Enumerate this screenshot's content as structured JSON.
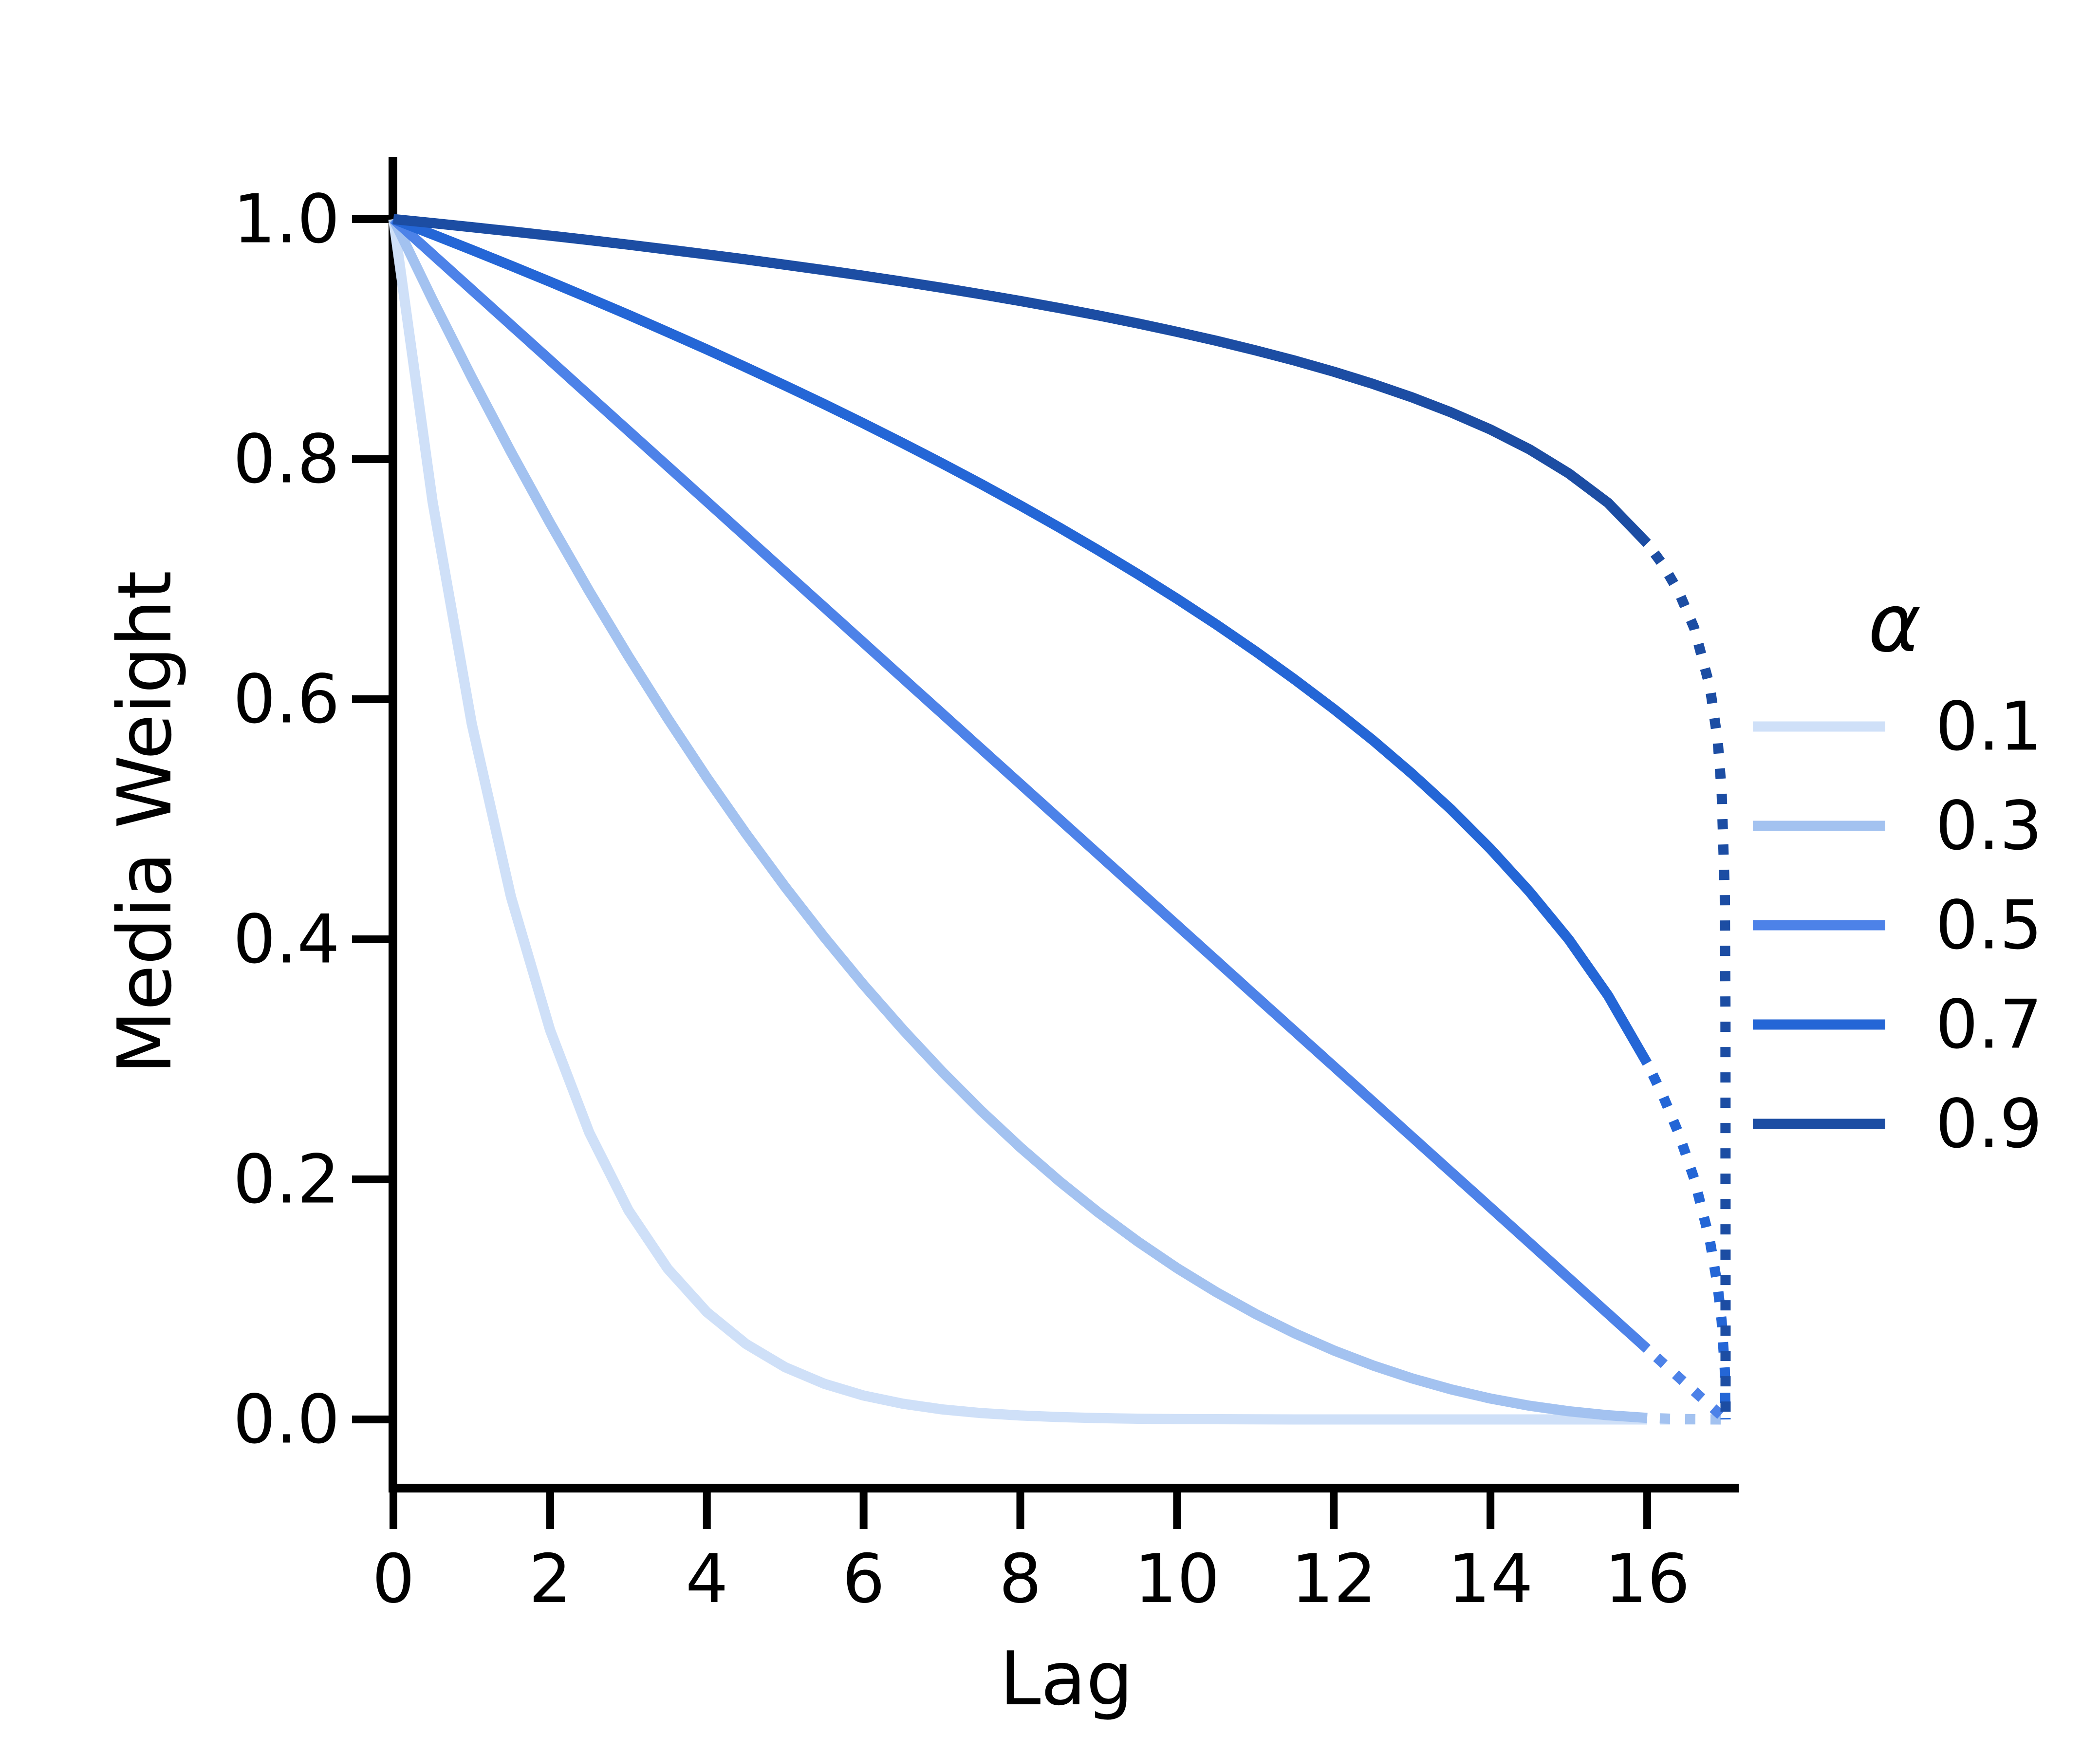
{
  "chart_data": {
    "type": "line",
    "title": "",
    "xlabel": "Lag",
    "ylabel": "Media Weight",
    "xlim": [
      0,
      17.2
    ],
    "ylim": [
      -0.06,
      1.05
    ],
    "grid": false,
    "background": "#ffffff",
    "axis_color": "#000000",
    "x_tick_values": [
      0,
      2,
      4,
      6,
      8,
      10,
      12,
      14,
      16
    ],
    "x_tick_labels": [
      "0",
      "2",
      "4",
      "6",
      "8",
      "10",
      "12",
      "14",
      "16"
    ],
    "y_tick_values": [
      0.0,
      0.2,
      0.4,
      0.6,
      0.8,
      1.0
    ],
    "y_tick_labels": [
      "0.0",
      "0.2",
      "0.4",
      "0.6",
      "0.8",
      "1.0"
    ],
    "legend": {
      "title": "α",
      "position": "right",
      "entries": [
        {
          "label": "0.1",
          "color": "#cfe0f8"
        },
        {
          "label": "0.3",
          "color": "#a3c2f0"
        },
        {
          "label": "0.5",
          "color": "#4d82e8"
        },
        {
          "label": "0.7",
          "color": "#2466d6"
        },
        {
          "label": "0.9",
          "color": "#1c4da3"
        }
      ]
    },
    "line_style": {
      "solid_until_lag": 16,
      "dotted_until_lag": 17
    },
    "lags_solid": [
      0,
      0.5,
      1,
      1.5,
      2,
      2.5,
      3,
      3.5,
      4,
      4.5,
      5,
      5.5,
      6,
      6.5,
      7,
      7.5,
      8,
      8.5,
      9,
      9.5,
      10,
      10.5,
      11,
      11.5,
      12,
      12.5,
      13,
      13.5,
      14,
      14.5,
      15,
      15.5,
      16
    ],
    "series": [
      {
        "name": "0.1",
        "color": "#cfe0f8",
        "weights_solid": [
          1.0,
          0.7644,
          0.5795,
          0.4354,
          0.3242,
          0.2389,
          0.1742,
          0.1256,
          0.0894,
          0.0629,
          0.0435,
          0.0297,
          0.0199,
          0.0131,
          0.0084,
          0.0053,
          0.0033,
          0.002,
          0.0011,
          0.0006,
          0.0003,
          0.0002,
          0.0001,
          0.0,
          0.0,
          0.0,
          0.0,
          0.0,
          0.0,
          0.0,
          0.0,
          0.0,
          0.0
        ],
        "lags_dotted": [
          16,
          16.5,
          17
        ],
        "weights_dotted": [
          0.0,
          0.0,
          0.0
        ]
      },
      {
        "name": "0.3",
        "color": "#a3c2f0",
        "weights_solid": [
          1.0,
          0.9327,
          0.8681,
          0.8061,
          0.7467,
          0.6899,
          0.6357,
          0.584,
          0.5347,
          0.488,
          0.4436,
          0.4017,
          0.3621,
          0.3249,
          0.2899,
          0.2572,
          0.2267,
          0.1984,
          0.1722,
          0.1482,
          0.1261,
          0.1061,
          0.088,
          0.0718,
          0.0575,
          0.045,
          0.0342,
          0.025,
          0.0174,
          0.0114,
          0.0068,
          0.0035,
          0.0013
        ],
        "lags_dotted": [
          16,
          16.25,
          16.5,
          16.75,
          17
        ],
        "weights_dotted": [
          0.0013,
          0.0007,
          0.0003,
          0.0001,
          0.0
        ]
      },
      {
        "name": "0.5",
        "color": "#4d82e8",
        "weights_solid": [
          1.0,
          0.9706,
          0.9412,
          0.9118,
          0.8824,
          0.8529,
          0.8235,
          0.7941,
          0.7647,
          0.7353,
          0.7059,
          0.6765,
          0.6471,
          0.6176,
          0.5882,
          0.5588,
          0.5294,
          0.5,
          0.4706,
          0.4412,
          0.4118,
          0.3824,
          0.3529,
          0.3235,
          0.2941,
          0.2647,
          0.2353,
          0.2059,
          0.1765,
          0.1471,
          0.1176,
          0.0882,
          0.0588
        ],
        "lags_dotted": [
          16,
          16.25,
          16.5,
          16.75,
          17
        ],
        "weights_dotted": [
          0.0588,
          0.0441,
          0.0294,
          0.0147,
          0.0
        ]
      },
      {
        "name": "0.7",
        "color": "#2466d6",
        "weights_solid": [
          1.0,
          0.9873,
          0.9744,
          0.9612,
          0.9478,
          0.9341,
          0.9202,
          0.9059,
          0.8914,
          0.8765,
          0.8613,
          0.8458,
          0.8298,
          0.8134,
          0.7966,
          0.7793,
          0.7614,
          0.743,
          0.7239,
          0.7042,
          0.6837,
          0.6623,
          0.64,
          0.6165,
          0.5919,
          0.5658,
          0.5379,
          0.508,
          0.4753,
          0.4395,
          0.3998,
          0.3532,
          0.2968
        ],
        "lags_dotted": [
          16,
          16.2,
          16.4,
          16.6,
          16.8,
          16.9,
          16.95,
          16.99,
          17
        ],
        "weights_dotted": [
          0.2968,
          0.2698,
          0.2385,
          0.2005,
          0.1489,
          0.1107,
          0.0822,
          0.0413,
          0.0
        ]
      },
      {
        "name": "0.9",
        "color": "#1c4da3",
        "weights_solid": [
          1.0,
          0.9967,
          0.9933,
          0.9898,
          0.9862,
          0.9825,
          0.9787,
          0.9747,
          0.9706,
          0.9664,
          0.962,
          0.9575,
          0.9528,
          0.9479,
          0.9428,
          0.9374,
          0.9318,
          0.9259,
          0.9197,
          0.9131,
          0.9061,
          0.8987,
          0.8907,
          0.8822,
          0.8729,
          0.8627,
          0.8515,
          0.8389,
          0.8247,
          0.8081,
          0.7881,
          0.7636,
          0.7299
        ],
        "lags_dotted": [
          16,
          16.2,
          16.4,
          16.6,
          16.8,
          16.9,
          16.95,
          16.99,
          16.999,
          17
        ],
        "weights_dotted": [
          0.7299,
          0.7121,
          0.6897,
          0.6593,
          0.6104,
          0.5652,
          0.5233,
          0.4376,
          0.339,
          0.0
        ]
      }
    ]
  }
}
